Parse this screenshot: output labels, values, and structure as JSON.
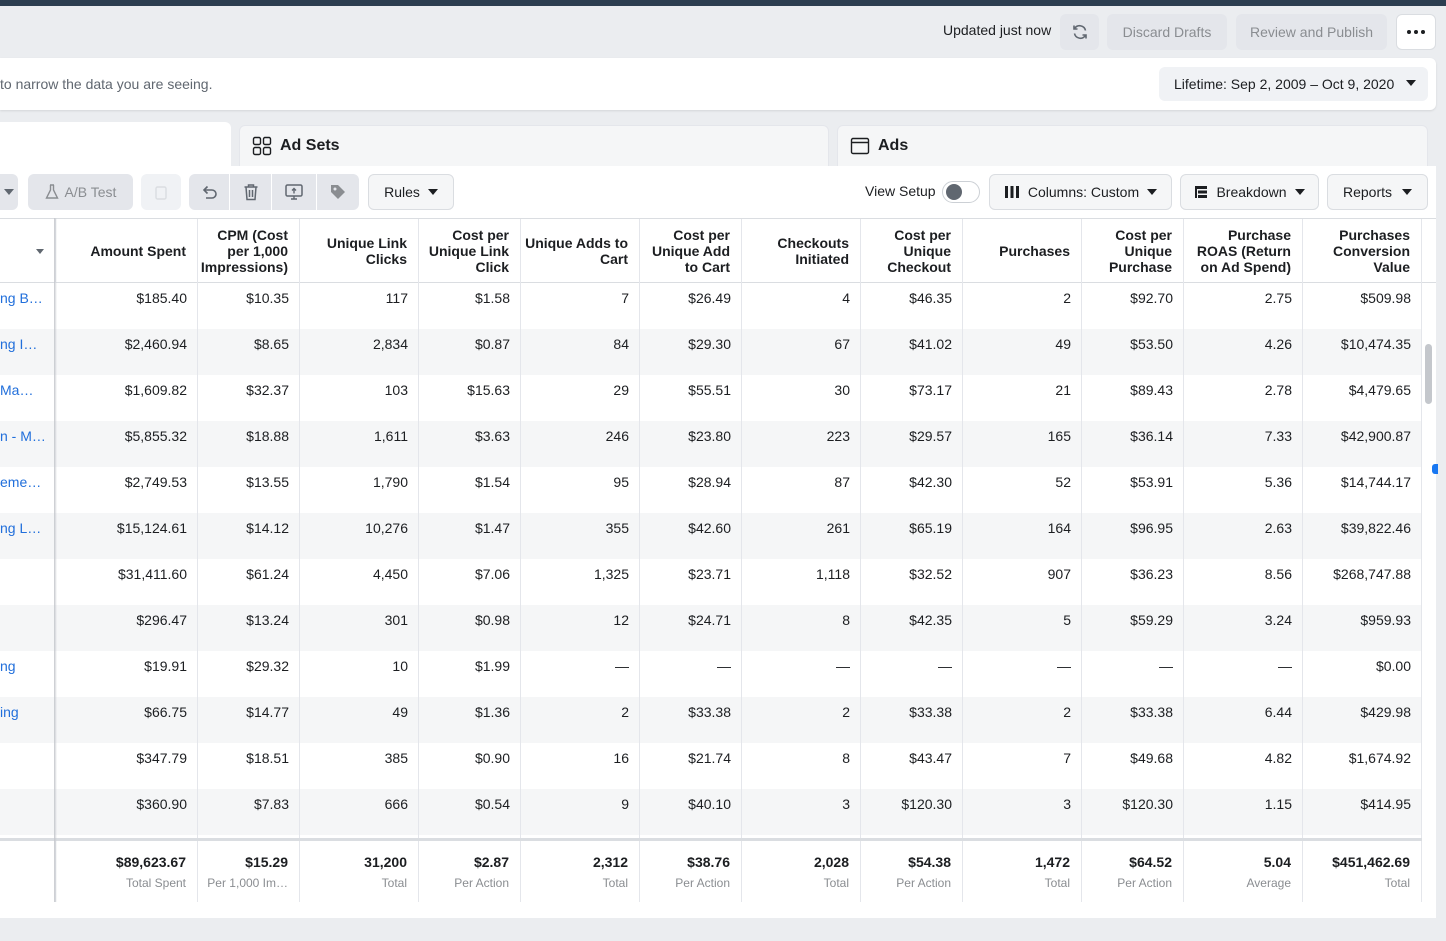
{
  "header": {
    "updated_text": "Updated just now",
    "discard_label": "Discard Drafts",
    "review_label": "Review and Publish"
  },
  "filter": {
    "hint": "to narrow the data you are seeing.",
    "date_range": "Lifetime: Sep 2, 2009 – Oct 9, 2020"
  },
  "tabs": {
    "adsets_label": "Ad Sets",
    "ads_label": "Ads"
  },
  "toolbar": {
    "ab_test_label": "A/B Test",
    "rules_label": "Rules",
    "view_setup_label": "View Setup",
    "view_setup_on": false,
    "columns_label": "Columns: Custom",
    "breakdown_label": "Breakdown",
    "reports_label": "Reports"
  },
  "table": {
    "columns": [
      "Amount Spent",
      "CPM (Cost per 1,000 Impressions)",
      "Unique Link Clicks",
      "Cost per Unique Link Click",
      "Unique Adds to Cart",
      "Cost per Unique Add to Cart",
      "Checkouts Initiated",
      "Cost per Unique Checkout",
      "Purchases",
      "Cost per Unique Purchase",
      "Purchase ROAS (Return on Ad Spend)",
      "Purchases Conversion Value"
    ],
    "rows": [
      {
        "name": "ng B…",
        "values": [
          "$185.40",
          "$10.35",
          "117",
          "$1.58",
          "7",
          "$26.49",
          "4",
          "$46.35",
          "2",
          "$92.70",
          "2.75",
          "$509.98"
        ]
      },
      {
        "name": "ng I…",
        "values": [
          "$2,460.94",
          "$8.65",
          "2,834",
          "$0.87",
          "84",
          "$29.30",
          "67",
          "$41.02",
          "49",
          "$53.50",
          "4.26",
          "$10,474.35"
        ]
      },
      {
        "name": "Ma…",
        "values": [
          "$1,609.82",
          "$32.37",
          "103",
          "$15.63",
          "29",
          "$55.51",
          "30",
          "$73.17",
          "21",
          "$89.43",
          "2.78",
          "$4,479.65"
        ]
      },
      {
        "name": "n - M…",
        "values": [
          "$5,855.32",
          "$18.88",
          "1,611",
          "$3.63",
          "246",
          "$23.80",
          "223",
          "$29.57",
          "165",
          "$36.14",
          "7.33",
          "$42,900.87"
        ]
      },
      {
        "name": "eme…",
        "values": [
          "$2,749.53",
          "$13.55",
          "1,790",
          "$1.54",
          "95",
          "$28.94",
          "87",
          "$42.30",
          "52",
          "$53.91",
          "5.36",
          "$14,744.17"
        ]
      },
      {
        "name": "ng L…",
        "values": [
          "$15,124.61",
          "$14.12",
          "10,276",
          "$1.47",
          "355",
          "$42.60",
          "261",
          "$65.19",
          "164",
          "$96.95",
          "2.63",
          "$39,822.46"
        ]
      },
      {
        "name": "",
        "values": [
          "$31,411.60",
          "$61.24",
          "4,450",
          "$7.06",
          "1,325",
          "$23.71",
          "1,118",
          "$32.52",
          "907",
          "$36.23",
          "8.56",
          "$268,747.88"
        ]
      },
      {
        "name": "",
        "values": [
          "$296.47",
          "$13.24",
          "301",
          "$0.98",
          "12",
          "$24.71",
          "8",
          "$42.35",
          "5",
          "$59.29",
          "3.24",
          "$959.93"
        ]
      },
      {
        "name": "ng",
        "values": [
          "$19.91",
          "$29.32",
          "10",
          "$1.99",
          "—",
          "—",
          "—",
          "—",
          "—",
          "—",
          "—",
          "$0.00"
        ]
      },
      {
        "name": "ing",
        "values": [
          "$66.75",
          "$14.77",
          "49",
          "$1.36",
          "2",
          "$33.38",
          "2",
          "$33.38",
          "2",
          "$33.38",
          "6.44",
          "$429.98"
        ]
      },
      {
        "name": "",
        "values": [
          "$347.79",
          "$18.51",
          "385",
          "$0.90",
          "16",
          "$21.74",
          "8",
          "$43.47",
          "7",
          "$49.68",
          "4.82",
          "$1,674.92"
        ]
      },
      {
        "name": "",
        "values": [
          "$360.90",
          "$7.83",
          "666",
          "$0.54",
          "9",
          "$40.10",
          "3",
          "$120.30",
          "3",
          "$120.30",
          "1.15",
          "$414.95"
        ]
      }
    ],
    "totals": [
      {
        "value": "$89,623.67",
        "label": "Total Spent"
      },
      {
        "value": "$15.29",
        "label": "Per 1,000 Im…"
      },
      {
        "value": "31,200",
        "label": "Total"
      },
      {
        "value": "$2.87",
        "label": "Per Action"
      },
      {
        "value": "2,312",
        "label": "Total"
      },
      {
        "value": "$38.76",
        "label": "Per Action"
      },
      {
        "value": "2,028",
        "label": "Total"
      },
      {
        "value": "$54.38",
        "label": "Per Action"
      },
      {
        "value": "1,472",
        "label": "Total"
      },
      {
        "value": "$64.52",
        "label": "Per Action"
      },
      {
        "value": "5.04",
        "label": "Average"
      },
      {
        "value": "$451,462.69",
        "label": "Total"
      }
    ]
  }
}
